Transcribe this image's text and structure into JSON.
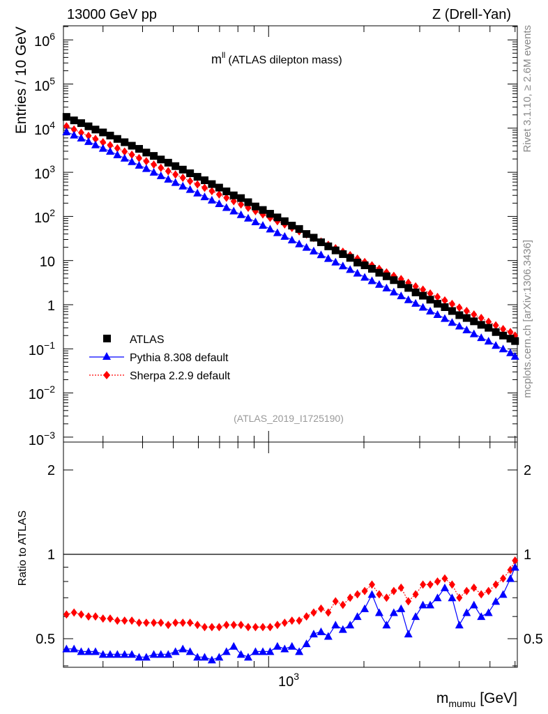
{
  "header": {
    "left": "13000 GeV pp",
    "right": "Z (Drell-Yan)"
  },
  "side": {
    "top": "Rivet 3.1.10, ≥ 2.6M events",
    "bottom": "mcplots.cern.ch [arXiv:1306.3436]"
  },
  "plot": {
    "title_main": "m",
    "title_sup": "ll",
    "title_rest": "(ATLAS dilepton mass)",
    "analysis_tag": "(ATLAS_2019_I1725190)"
  },
  "axes": {
    "ylabel_top": "Entries / 10 GeV",
    "ylabel_bottom": "Ratio to ATLAS",
    "xlabel_main": "m",
    "xlabel_sub": "mumu",
    "xlabel_unit": "[GeV]",
    "xtick_base": "10",
    "xtick_exp": "3",
    "ytick_top": [
      {
        "base": "10",
        "exp": "6"
      },
      {
        "base": "10",
        "exp": "5"
      },
      {
        "base": "10",
        "exp": "4"
      },
      {
        "base": "10",
        "exp": "3"
      },
      {
        "base": "10",
        "exp": "2"
      },
      {
        "base": "10",
        "exp": ""
      },
      {
        "base": "1",
        "exp": ""
      },
      {
        "base": "10",
        "exp": "−1"
      },
      {
        "base": "10",
        "exp": "−2"
      },
      {
        "base": "10",
        "exp": "−3"
      }
    ],
    "ytick_ratio": [
      "0.5",
      "1",
      "2"
    ]
  },
  "legend": [
    {
      "label": "ATLAS",
      "color": "#000000",
      "marker": "square"
    },
    {
      "label": "Pythia 8.308 default",
      "color": "#0000ff",
      "marker": "triangle"
    },
    {
      "label": "Sherpa 2.2.9 default",
      "color": "#ff0000",
      "marker": "diamond"
    }
  ],
  "chart_data": [
    {
      "type": "scatter",
      "log_x": true,
      "log_y": true,
      "xlim": [
        225,
        6100
      ],
      "ylim": [
        0.0008,
        2000000
      ],
      "xlabel": "m_mumu [GeV]",
      "ylabel": "Entries / 10 GeV",
      "x": [
        230,
        243,
        256,
        270,
        284,
        300,
        316,
        333,
        351,
        370,
        390,
        411,
        434,
        457,
        482,
        508,
        536,
        565,
        596,
        628,
        662,
        698,
        736,
        776,
        818,
        862,
        909,
        959,
        1011,
        1066,
        1124,
        1185,
        1249,
        1317,
        1388,
        1464,
        1543,
        1627,
        1716,
        1809,
        1907,
        2011,
        2120,
        2235,
        2357,
        2485,
        2620,
        2762,
        2912,
        3071,
        3238,
        3414,
        3600,
        3796,
        4002,
        4220,
        4450,
        4692,
        4948,
        5217,
        5501,
        5800,
        6000
      ],
      "series": [
        {
          "name": "ATLAS",
          "color": "#000000",
          "values": [
            18000,
            15000,
            13000,
            11000,
            9300,
            8000,
            6800,
            5700,
            4800,
            4000,
            3400,
            2800,
            2350,
            1950,
            1650,
            1380,
            1150,
            950,
            790,
            660,
            540,
            450,
            370,
            300,
            260,
            210,
            168,
            140,
            115,
            95,
            78,
            62,
            52,
            40,
            33,
            26,
            21,
            17,
            14,
            11.5,
            9,
            7.8,
            6.5,
            5.3,
            4.4,
            3.6,
            2.9,
            2.4,
            1.9,
            1.6,
            1.3,
            1.05,
            0.88,
            0.72,
            0.58,
            0.5,
            0.42,
            0.35,
            0.3,
            0.24,
            0.2,
            0.17,
            0.15
          ]
        },
        {
          "name": "Pythia 8.308 default",
          "color": "#0000ff",
          "values": [
            8300,
            7000,
            6000,
            5000,
            4200,
            3500,
            3000,
            2500,
            2100,
            1750,
            1450,
            1220,
            1010,
            840,
            700,
            590,
            490,
            410,
            340,
            280,
            235,
            195,
            160,
            133,
            110,
            92,
            76,
            63,
            52,
            43,
            35.5,
            29.5,
            24,
            20,
            16.5,
            13.6,
            11.2,
            9.3,
            7.6,
            6.3,
            5.2,
            4.2,
            3.5,
            2.9,
            2.4,
            1.95,
            1.6,
            1.3,
            1.08,
            0.88,
            0.72,
            0.6,
            0.49,
            0.4,
            0.33,
            0.27,
            0.22,
            0.18,
            0.15,
            0.12,
            0.1,
            0.082,
            0.068
          ]
        },
        {
          "name": "Sherpa 2.2.9 default",
          "color": "#ff0000",
          "values": [
            11000,
            9300,
            7900,
            6700,
            5700,
            4800,
            4100,
            3500,
            2950,
            2500,
            2100,
            1780,
            1500,
            1260,
            1060,
            890,
            750,
            630,
            530,
            445,
            375,
            315,
            265,
            222,
            187,
            157,
            132,
            111,
            93,
            78,
            66,
            55,
            46,
            39,
            32.5,
            27,
            22.7,
            19,
            15.9,
            13.3,
            11.1,
            9.3,
            7.8,
            6.5,
            5.4,
            4.5,
            3.8,
            3.15,
            2.6,
            2.2,
            1.8,
            1.5,
            1.25,
            1.04,
            0.86,
            0.72,
            0.6,
            0.5,
            0.41,
            0.34,
            0.28,
            0.24,
            0.2
          ]
        }
      ]
    },
    {
      "type": "line",
      "log_x": true,
      "ylim": [
        0.3,
        2.35
      ],
      "ylabel": "Ratio to ATLAS",
      "reference_line": 1,
      "x": [
        230,
        243,
        256,
        270,
        284,
        300,
        316,
        333,
        351,
        370,
        390,
        411,
        434,
        457,
        482,
        508,
        536,
        565,
        596,
        628,
        662,
        698,
        736,
        776,
        818,
        862,
        909,
        959,
        1011,
        1066,
        1124,
        1185,
        1249,
        1317,
        1388,
        1464,
        1543,
        1627,
        1716,
        1809,
        1907,
        2011,
        2120,
        2235,
        2357,
        2485,
        2620,
        2762,
        2912,
        3071,
        3238,
        3414,
        3600,
        3796,
        4002,
        4220,
        4450,
        4692,
        4948,
        5217,
        5501,
        5800,
        6000
      ],
      "series": [
        {
          "name": "Pythia 8.308 default",
          "color": "#0000ff",
          "values": [
            0.46,
            0.46,
            0.45,
            0.45,
            0.45,
            0.44,
            0.44,
            0.44,
            0.44,
            0.44,
            0.43,
            0.43,
            0.44,
            0.44,
            0.44,
            0.45,
            0.46,
            0.45,
            0.43,
            0.43,
            0.42,
            0.43,
            0.45,
            0.47,
            0.44,
            0.43,
            0.45,
            0.45,
            0.45,
            0.47,
            0.46,
            0.47,
            0.45,
            0.48,
            0.52,
            0.53,
            0.51,
            0.56,
            0.54,
            0.56,
            0.6,
            0.64,
            0.72,
            0.62,
            0.56,
            0.62,
            0.64,
            0.52,
            0.6,
            0.66,
            0.66,
            0.7,
            0.76,
            0.7,
            0.56,
            0.62,
            0.66,
            0.6,
            0.62,
            0.68,
            0.72,
            0.82,
            0.9
          ]
        },
        {
          "name": "Sherpa 2.2.9 default",
          "color": "#ff0000",
          "values": [
            0.61,
            0.62,
            0.61,
            0.6,
            0.6,
            0.59,
            0.59,
            0.58,
            0.58,
            0.58,
            0.57,
            0.57,
            0.57,
            0.57,
            0.56,
            0.57,
            0.57,
            0.57,
            0.56,
            0.55,
            0.55,
            0.55,
            0.56,
            0.56,
            0.56,
            0.55,
            0.55,
            0.55,
            0.55,
            0.56,
            0.57,
            0.58,
            0.58,
            0.6,
            0.62,
            0.64,
            0.62,
            0.68,
            0.66,
            0.7,
            0.72,
            0.74,
            0.78,
            0.72,
            0.7,
            0.74,
            0.76,
            0.68,
            0.72,
            0.78,
            0.78,
            0.8,
            0.82,
            0.78,
            0.7,
            0.74,
            0.76,
            0.72,
            0.74,
            0.78,
            0.82,
            0.88,
            0.95
          ]
        }
      ]
    }
  ]
}
